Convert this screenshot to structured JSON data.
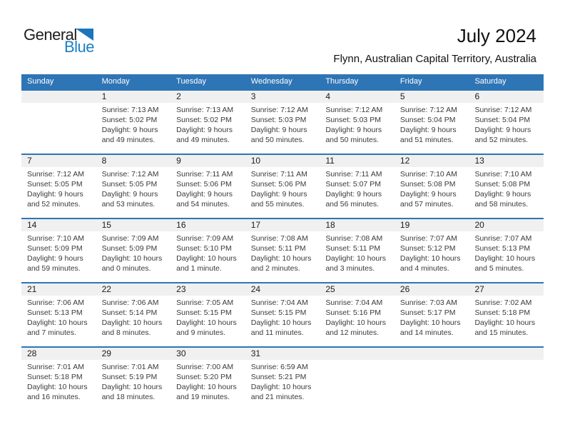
{
  "logo": {
    "general": "General",
    "blue": "Blue"
  },
  "header": {
    "title": "July 2024",
    "subtitle": "Flynn, Australian Capital Territory, Australia"
  },
  "colors": {
    "accent_blue": "#2e75b6",
    "logo_blue": "#1b75bc",
    "band_gray": "#f0f0f0"
  },
  "calendar": {
    "day_headers": [
      "Sunday",
      "Monday",
      "Tuesday",
      "Wednesday",
      "Thursday",
      "Friday",
      "Saturday"
    ],
    "weeks": [
      [
        {
          "day": "",
          "sunrise": "",
          "sunset": "",
          "daylight": ""
        },
        {
          "day": "1",
          "sunrise": "Sunrise: 7:13 AM",
          "sunset": "Sunset: 5:02 PM",
          "daylight": "Daylight: 9 hours and 49 minutes."
        },
        {
          "day": "2",
          "sunrise": "Sunrise: 7:13 AM",
          "sunset": "Sunset: 5:02 PM",
          "daylight": "Daylight: 9 hours and 49 minutes."
        },
        {
          "day": "3",
          "sunrise": "Sunrise: 7:12 AM",
          "sunset": "Sunset: 5:03 PM",
          "daylight": "Daylight: 9 hours and 50 minutes."
        },
        {
          "day": "4",
          "sunrise": "Sunrise: 7:12 AM",
          "sunset": "Sunset: 5:03 PM",
          "daylight": "Daylight: 9 hours and 50 minutes."
        },
        {
          "day": "5",
          "sunrise": "Sunrise: 7:12 AM",
          "sunset": "Sunset: 5:04 PM",
          "daylight": "Daylight: 9 hours and 51 minutes."
        },
        {
          "day": "6",
          "sunrise": "Sunrise: 7:12 AM",
          "sunset": "Sunset: 5:04 PM",
          "daylight": "Daylight: 9 hours and 52 minutes."
        }
      ],
      [
        {
          "day": "7",
          "sunrise": "Sunrise: 7:12 AM",
          "sunset": "Sunset: 5:05 PM",
          "daylight": "Daylight: 9 hours and 52 minutes."
        },
        {
          "day": "8",
          "sunrise": "Sunrise: 7:12 AM",
          "sunset": "Sunset: 5:05 PM",
          "daylight": "Daylight: 9 hours and 53 minutes."
        },
        {
          "day": "9",
          "sunrise": "Sunrise: 7:11 AM",
          "sunset": "Sunset: 5:06 PM",
          "daylight": "Daylight: 9 hours and 54 minutes."
        },
        {
          "day": "10",
          "sunrise": "Sunrise: 7:11 AM",
          "sunset": "Sunset: 5:06 PM",
          "daylight": "Daylight: 9 hours and 55 minutes."
        },
        {
          "day": "11",
          "sunrise": "Sunrise: 7:11 AM",
          "sunset": "Sunset: 5:07 PM",
          "daylight": "Daylight: 9 hours and 56 minutes."
        },
        {
          "day": "12",
          "sunrise": "Sunrise: 7:10 AM",
          "sunset": "Sunset: 5:08 PM",
          "daylight": "Daylight: 9 hours and 57 minutes."
        },
        {
          "day": "13",
          "sunrise": "Sunrise: 7:10 AM",
          "sunset": "Sunset: 5:08 PM",
          "daylight": "Daylight: 9 hours and 58 minutes."
        }
      ],
      [
        {
          "day": "14",
          "sunrise": "Sunrise: 7:10 AM",
          "sunset": "Sunset: 5:09 PM",
          "daylight": "Daylight: 9 hours and 59 minutes."
        },
        {
          "day": "15",
          "sunrise": "Sunrise: 7:09 AM",
          "sunset": "Sunset: 5:09 PM",
          "daylight": "Daylight: 10 hours and 0 minutes."
        },
        {
          "day": "16",
          "sunrise": "Sunrise: 7:09 AM",
          "sunset": "Sunset: 5:10 PM",
          "daylight": "Daylight: 10 hours and 1 minute."
        },
        {
          "day": "17",
          "sunrise": "Sunrise: 7:08 AM",
          "sunset": "Sunset: 5:11 PM",
          "daylight": "Daylight: 10 hours and 2 minutes."
        },
        {
          "day": "18",
          "sunrise": "Sunrise: 7:08 AM",
          "sunset": "Sunset: 5:11 PM",
          "daylight": "Daylight: 10 hours and 3 minutes."
        },
        {
          "day": "19",
          "sunrise": "Sunrise: 7:07 AM",
          "sunset": "Sunset: 5:12 PM",
          "daylight": "Daylight: 10 hours and 4 minutes."
        },
        {
          "day": "20",
          "sunrise": "Sunrise: 7:07 AM",
          "sunset": "Sunset: 5:13 PM",
          "daylight": "Daylight: 10 hours and 5 minutes."
        }
      ],
      [
        {
          "day": "21",
          "sunrise": "Sunrise: 7:06 AM",
          "sunset": "Sunset: 5:13 PM",
          "daylight": "Daylight: 10 hours and 7 minutes."
        },
        {
          "day": "22",
          "sunrise": "Sunrise: 7:06 AM",
          "sunset": "Sunset: 5:14 PM",
          "daylight": "Daylight: 10 hours and 8 minutes."
        },
        {
          "day": "23",
          "sunrise": "Sunrise: 7:05 AM",
          "sunset": "Sunset: 5:15 PM",
          "daylight": "Daylight: 10 hours and 9 minutes."
        },
        {
          "day": "24",
          "sunrise": "Sunrise: 7:04 AM",
          "sunset": "Sunset: 5:15 PM",
          "daylight": "Daylight: 10 hours and 11 minutes."
        },
        {
          "day": "25",
          "sunrise": "Sunrise: 7:04 AM",
          "sunset": "Sunset: 5:16 PM",
          "daylight": "Daylight: 10 hours and 12 minutes."
        },
        {
          "day": "26",
          "sunrise": "Sunrise: 7:03 AM",
          "sunset": "Sunset: 5:17 PM",
          "daylight": "Daylight: 10 hours and 14 minutes."
        },
        {
          "day": "27",
          "sunrise": "Sunrise: 7:02 AM",
          "sunset": "Sunset: 5:18 PM",
          "daylight": "Daylight: 10 hours and 15 minutes."
        }
      ],
      [
        {
          "day": "28",
          "sunrise": "Sunrise: 7:01 AM",
          "sunset": "Sunset: 5:18 PM",
          "daylight": "Daylight: 10 hours and 16 minutes."
        },
        {
          "day": "29",
          "sunrise": "Sunrise: 7:01 AM",
          "sunset": "Sunset: 5:19 PM",
          "daylight": "Daylight: 10 hours and 18 minutes."
        },
        {
          "day": "30",
          "sunrise": "Sunrise: 7:00 AM",
          "sunset": "Sunset: 5:20 PM",
          "daylight": "Daylight: 10 hours and 19 minutes."
        },
        {
          "day": "31",
          "sunrise": "Sunrise: 6:59 AM",
          "sunset": "Sunset: 5:21 PM",
          "daylight": "Daylight: 10 hours and 21 minutes."
        },
        {
          "day": "",
          "sunrise": "",
          "sunset": "",
          "daylight": ""
        },
        {
          "day": "",
          "sunrise": "",
          "sunset": "",
          "daylight": ""
        },
        {
          "day": "",
          "sunrise": "",
          "sunset": "",
          "daylight": ""
        }
      ]
    ]
  }
}
